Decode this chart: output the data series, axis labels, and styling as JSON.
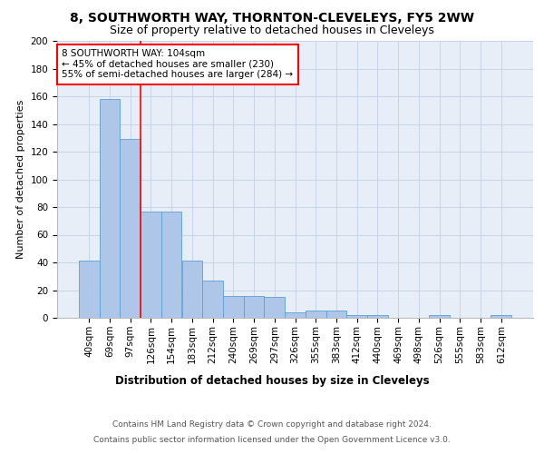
{
  "title": "8, SOUTHWORTH WAY, THORNTON-CLEVELEYS, FY5 2WW",
  "subtitle": "Size of property relative to detached houses in Cleveleys",
  "xlabel": "Distribution of detached houses by size in Cleveleys",
  "ylabel": "Number of detached properties",
  "categories": [
    "40sqm",
    "69sqm",
    "97sqm",
    "126sqm",
    "154sqm",
    "183sqm",
    "212sqm",
    "240sqm",
    "269sqm",
    "297sqm",
    "326sqm",
    "355sqm",
    "383sqm",
    "412sqm",
    "440sqm",
    "469sqm",
    "498sqm",
    "526sqm",
    "555sqm",
    "583sqm",
    "612sqm"
  ],
  "values": [
    41,
    158,
    129,
    77,
    77,
    41,
    27,
    16,
    16,
    15,
    4,
    5,
    5,
    2,
    2,
    0,
    0,
    2,
    0,
    0,
    2
  ],
  "bar_color": "#aec6e8",
  "bar_edge_color": "#5a9fd4",
  "red_line_x": 2.5,
  "annotation_text": "8 SOUTHWORTH WAY: 104sqm\n← 45% of detached houses are smaller (230)\n55% of semi-detached houses are larger (284) →",
  "annotation_box_color": "white",
  "annotation_box_edge_color": "red",
  "ylim": [
    0,
    200
  ],
  "yticks": [
    0,
    20,
    40,
    60,
    80,
    100,
    120,
    140,
    160,
    180,
    200
  ],
  "grid_color": "#c8d4e8",
  "background_color": "#e8eef8",
  "footer_line1": "Contains HM Land Registry data © Crown copyright and database right 2024.",
  "footer_line2": "Contains public sector information licensed under the Open Government Licence v3.0.",
  "title_fontsize": 10,
  "subtitle_fontsize": 9,
  "xlabel_fontsize": 8.5,
  "ylabel_fontsize": 8,
  "tick_fontsize": 7.5,
  "annotation_fontsize": 7.5,
  "footer_fontsize": 6.5
}
